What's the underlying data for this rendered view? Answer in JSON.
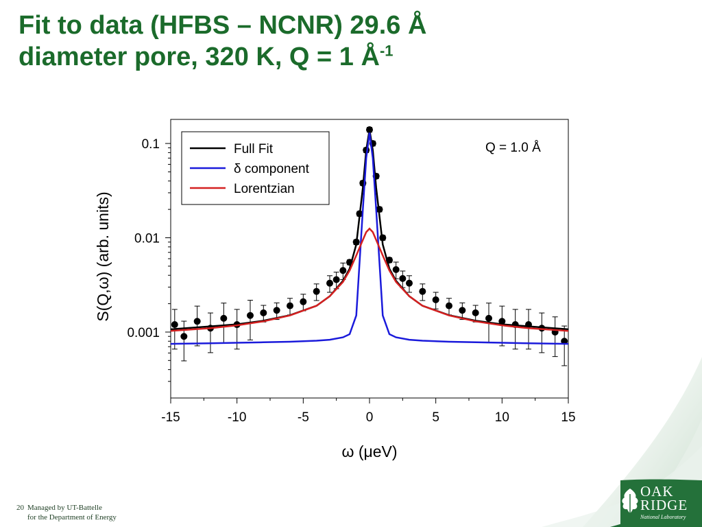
{
  "slide": {
    "title_line1": "Fit to data (HFBS – NCNR) 29.6 Å",
    "title_line2": "diameter pore, 320 K, Q = 1 Å",
    "title_superscript": "-1",
    "title_color": "#1b6b2b"
  },
  "footer": {
    "page_number": "20",
    "line1": "Managed by UT-Battelle",
    "line2": "for the Department of Energy"
  },
  "logo": {
    "name_line1": "OAK",
    "name_line2": "RIDGE",
    "subtitle": "National Laboratory",
    "icon": "oak-leaf-icon"
  },
  "chart_data": {
    "type": "line",
    "xlabel": "ω (μeV)",
    "ylabel": "S(Q,ω) (arb. units)",
    "annotation": "Q = 1.0 Å",
    "xlim": [
      -15,
      15
    ],
    "ylim": [
      0.0002,
      0.18
    ],
    "yscale": "log",
    "x_ticks": [
      "-15",
      "-10",
      "-5",
      "0",
      "5",
      "10",
      "15"
    ],
    "y_ticks": [
      {
        "value": 0.1,
        "label": "0.1"
      },
      {
        "value": 0.01,
        "label": "0.01"
      },
      {
        "value": 0.001,
        "label": "0.001"
      }
    ],
    "grid": false,
    "legend_position": "top-left",
    "series": [
      {
        "name": "Full Fit",
        "color": "#000000",
        "x": [
          -15,
          -12,
          -10,
          -8,
          -6,
          -4,
          -3,
          -2,
          -1.5,
          -1,
          -0.5,
          -0.25,
          0,
          0.25,
          0.5,
          1,
          1.5,
          2,
          3,
          4,
          6,
          8,
          10,
          12,
          15
        ],
        "y": [
          0.00107,
          0.00115,
          0.00121,
          0.00132,
          0.00151,
          0.0019,
          0.0024,
          0.0035,
          0.0047,
          0.0085,
          0.034,
          0.085,
          0.14,
          0.085,
          0.034,
          0.0085,
          0.0047,
          0.0035,
          0.0024,
          0.0019,
          0.00151,
          0.00132,
          0.00121,
          0.00115,
          0.00107
        ]
      },
      {
        "name": "δ component",
        "color": "#1a1adb",
        "x": [
          -15,
          -12,
          -10,
          -8,
          -6,
          -4,
          -3,
          -2,
          -1.5,
          -1,
          -0.5,
          -0.25,
          0,
          0.25,
          0.5,
          1,
          1.5,
          2,
          3,
          4,
          6,
          8,
          10,
          12,
          15
        ],
        "y": [
          0.00075,
          0.00076,
          0.00077,
          0.00078,
          0.00079,
          0.00081,
          0.00083,
          0.00088,
          0.00095,
          0.0015,
          0.02,
          0.07,
          0.13,
          0.07,
          0.02,
          0.0015,
          0.00095,
          0.00088,
          0.00083,
          0.00081,
          0.00079,
          0.00078,
          0.00077,
          0.00076,
          0.00075
        ]
      },
      {
        "name": "Lorentzian",
        "color": "#d42020",
        "x": [
          -15,
          -12,
          -10,
          -8,
          -6,
          -4,
          -3,
          -2,
          -1.5,
          -1,
          -0.5,
          -0.25,
          0,
          0.25,
          0.5,
          1,
          1.5,
          2,
          3,
          4,
          6,
          8,
          10,
          12,
          15
        ],
        "y": [
          0.00103,
          0.0011,
          0.00118,
          0.0013,
          0.0015,
          0.0019,
          0.0024,
          0.0034,
          0.0045,
          0.0065,
          0.0095,
          0.0115,
          0.0125,
          0.0115,
          0.0095,
          0.0065,
          0.0045,
          0.0034,
          0.0024,
          0.0019,
          0.0015,
          0.0013,
          0.00118,
          0.0011,
          0.00103
        ]
      },
      {
        "name": "Data",
        "color": "#000000",
        "marker": "circle",
        "error_bars": true,
        "x": [
          -14.7,
          -14,
          -13,
          -12,
          -11,
          -10,
          -9,
          -8,
          -7,
          -6,
          -5,
          -4,
          -3,
          -2.5,
          -2,
          -1.5,
          -1,
          -0.75,
          -0.5,
          -0.25,
          0,
          0.25,
          0.5,
          0.75,
          1,
          1.5,
          2,
          2.5,
          3,
          4,
          5,
          6,
          7,
          8,
          9,
          10,
          11,
          12,
          13,
          14,
          14.7
        ],
        "y": [
          0.0012,
          0.0009,
          0.0013,
          0.0011,
          0.0014,
          0.0012,
          0.0015,
          0.0016,
          0.0017,
          0.0019,
          0.0021,
          0.0027,
          0.0033,
          0.0036,
          0.0045,
          0.0055,
          0.009,
          0.018,
          0.038,
          0.085,
          0.14,
          0.1,
          0.045,
          0.02,
          0.01,
          0.0058,
          0.0046,
          0.0037,
          0.0033,
          0.0027,
          0.0022,
          0.0019,
          0.0017,
          0.0016,
          0.0014,
          0.0013,
          0.0012,
          0.0012,
          0.0011,
          0.001,
          0.0008
        ]
      }
    ]
  }
}
